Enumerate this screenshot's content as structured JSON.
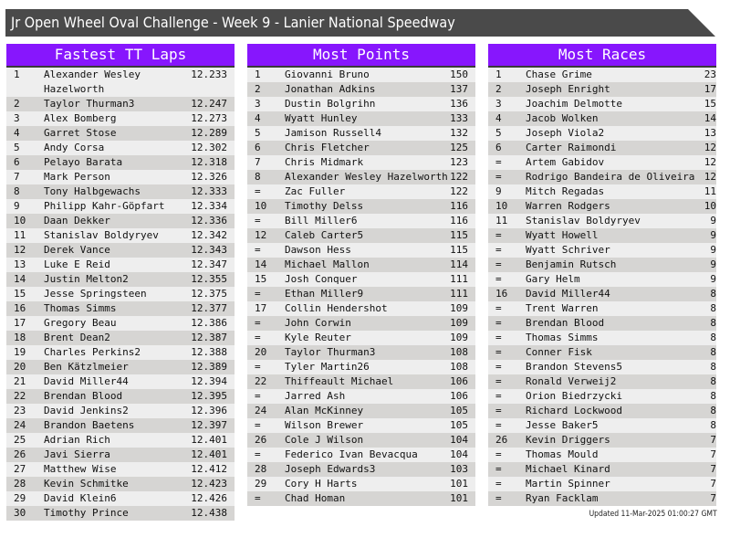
{
  "title": "Jr Open Wheel Oval Challenge - Week 9 - Lanier National Speedway",
  "colors": {
    "header_bg": "#8716fd",
    "title_bg": "#4a4a4a",
    "row_light": "#eeeeee",
    "row_dark": "#d6d5d3"
  },
  "tables": [
    {
      "heading": "Fastest TT Laps",
      "rows": [
        [
          "1",
          "Alexander Wesley Hazelworth",
          "12.233"
        ],
        [
          "2",
          "Taylor Thurman3",
          "12.247"
        ],
        [
          "3",
          "Alex Bomberg",
          "12.273"
        ],
        [
          "4",
          "Garret Stose",
          "12.289"
        ],
        [
          "5",
          "Andy Corsa",
          "12.302"
        ],
        [
          "6",
          "Pelayo Barata",
          "12.318"
        ],
        [
          "7",
          "Mark Person",
          "12.326"
        ],
        [
          "8",
          "Tony Halbgewachs",
          "12.333"
        ],
        [
          "9",
          "Philipp Kahr-Göpfart",
          "12.334"
        ],
        [
          "10",
          "Daan Dekker",
          "12.336"
        ],
        [
          "11",
          "Stanislav Boldyryev",
          "12.342"
        ],
        [
          "12",
          "Derek Vance",
          "12.343"
        ],
        [
          "13",
          "Luke E Reid",
          "12.347"
        ],
        [
          "14",
          "Justin Melton2",
          "12.355"
        ],
        [
          "15",
          "Jesse Springsteen",
          "12.375"
        ],
        [
          "16",
          "Thomas Simms",
          "12.377"
        ],
        [
          "17",
          "Gregory Beau",
          "12.386"
        ],
        [
          "18",
          "Brent Dean2",
          "12.387"
        ],
        [
          "19",
          "Charles Perkins2",
          "12.388"
        ],
        [
          "20",
          "Ben Kätzlmeier",
          "12.389"
        ],
        [
          "21",
          "David Miller44",
          "12.394"
        ],
        [
          "22",
          "Brendan Blood",
          "12.395"
        ],
        [
          "23",
          "David Jenkins2",
          "12.396"
        ],
        [
          "24",
          "Brandon Baetens",
          "12.397"
        ],
        [
          "25",
          "Adrian Rich",
          "12.401"
        ],
        [
          "26",
          "Javi Sierra",
          "12.401"
        ],
        [
          "27",
          "Matthew Wise",
          "12.412"
        ],
        [
          "28",
          "Kevin Schmitke",
          "12.423"
        ],
        [
          "29",
          "David Klein6",
          "12.426"
        ],
        [
          "30",
          "Timothy Prince",
          "12.438"
        ]
      ]
    },
    {
      "heading": "Most Points",
      "rows": [
        [
          "1",
          "Giovanni Bruno",
          "150"
        ],
        [
          "2",
          "Jonathan Adkins",
          "137"
        ],
        [
          "3",
          "Dustin Bolgrihn",
          "136"
        ],
        [
          "4",
          "Wyatt Hunley",
          "133"
        ],
        [
          "5",
          "Jamison Russell4",
          "132"
        ],
        [
          "6",
          "Chris Fletcher",
          "125"
        ],
        [
          "7",
          "Chris Midmark",
          "123"
        ],
        [
          "8",
          "Alexander Wesley Hazelworth",
          "122"
        ],
        [
          "=",
          "Zac Fuller",
          "122"
        ],
        [
          "10",
          "Timothy Delss",
          "116"
        ],
        [
          "=",
          "Bill Miller6",
          "116"
        ],
        [
          "12",
          "Caleb Carter5",
          "115"
        ],
        [
          "=",
          "Dawson Hess",
          "115"
        ],
        [
          "14",
          "Michael Mallon",
          "114"
        ],
        [
          "15",
          "Josh Conquer",
          "111"
        ],
        [
          "=",
          "Ethan Miller9",
          "111"
        ],
        [
          "17",
          "Collin Hendershot",
          "109"
        ],
        [
          "=",
          "John Corwin",
          "109"
        ],
        [
          "=",
          "Kyle Reuter",
          "109"
        ],
        [
          "20",
          "Taylor Thurman3",
          "108"
        ],
        [
          "=",
          "Tyler Martin26",
          "108"
        ],
        [
          "22",
          "Thiffeault Michael",
          "106"
        ],
        [
          "=",
          "Jarred Ash",
          "106"
        ],
        [
          "24",
          "Alan McKinney",
          "105"
        ],
        [
          "=",
          "Wilson Brewer",
          "105"
        ],
        [
          "26",
          "Cole J Wilson",
          "104"
        ],
        [
          "=",
          "Federico Ivan Bevacqua",
          "104"
        ],
        [
          "28",
          "Joseph Edwards3",
          "103"
        ],
        [
          "29",
          "Cory H Harts",
          "101"
        ],
        [
          "=",
          "Chad Homan",
          "101"
        ]
      ]
    },
    {
      "heading": "Most Races",
      "rows": [
        [
          "1",
          "Chase Grime",
          "23"
        ],
        [
          "2",
          "Joseph Enright",
          "17"
        ],
        [
          "3",
          "Joachim Delmotte",
          "15"
        ],
        [
          "4",
          "Jacob Wolken",
          "14"
        ],
        [
          "5",
          "Joseph Viola2",
          "13"
        ],
        [
          "6",
          "Carter Raimondi",
          "12"
        ],
        [
          "=",
          "Artem Gabidov",
          "12"
        ],
        [
          "=",
          "Rodrigo Bandeira de Oliveira",
          "12"
        ],
        [
          "9",
          "Mitch Regadas",
          "11"
        ],
        [
          "10",
          "Warren Rodgers",
          "10"
        ],
        [
          "11",
          "Stanislav Boldyryev",
          "9"
        ],
        [
          "=",
          "Wyatt Howell",
          "9"
        ],
        [
          "=",
          "Wyatt Schriver",
          "9"
        ],
        [
          "=",
          "Benjamin Rutsch",
          "9"
        ],
        [
          "=",
          "Gary Helm",
          "9"
        ],
        [
          "16",
          "David Miller44",
          "8"
        ],
        [
          "=",
          "Trent Warren",
          "8"
        ],
        [
          "=",
          "Brendan Blood",
          "8"
        ],
        [
          "=",
          "Thomas Simms",
          "8"
        ],
        [
          "=",
          "Conner Fisk",
          "8"
        ],
        [
          "=",
          "Brandon Stevens5",
          "8"
        ],
        [
          "=",
          "Ronald Verweij2",
          "8"
        ],
        [
          "=",
          "Orion Biedrzycki",
          "8"
        ],
        [
          "=",
          "Richard Lockwood",
          "8"
        ],
        [
          "=",
          "Jesse Baker5",
          "8"
        ],
        [
          "26",
          "Kevin Driggers",
          "7"
        ],
        [
          "=",
          "Thomas Mould",
          "7"
        ],
        [
          "=",
          "Michael Kinard",
          "7"
        ],
        [
          "=",
          "Martin Spinner",
          "7"
        ],
        [
          "=",
          "Ryan Facklam",
          "7"
        ]
      ]
    }
  ],
  "updated": "Updated 11-Mar-2025 01:00:27 GMT"
}
